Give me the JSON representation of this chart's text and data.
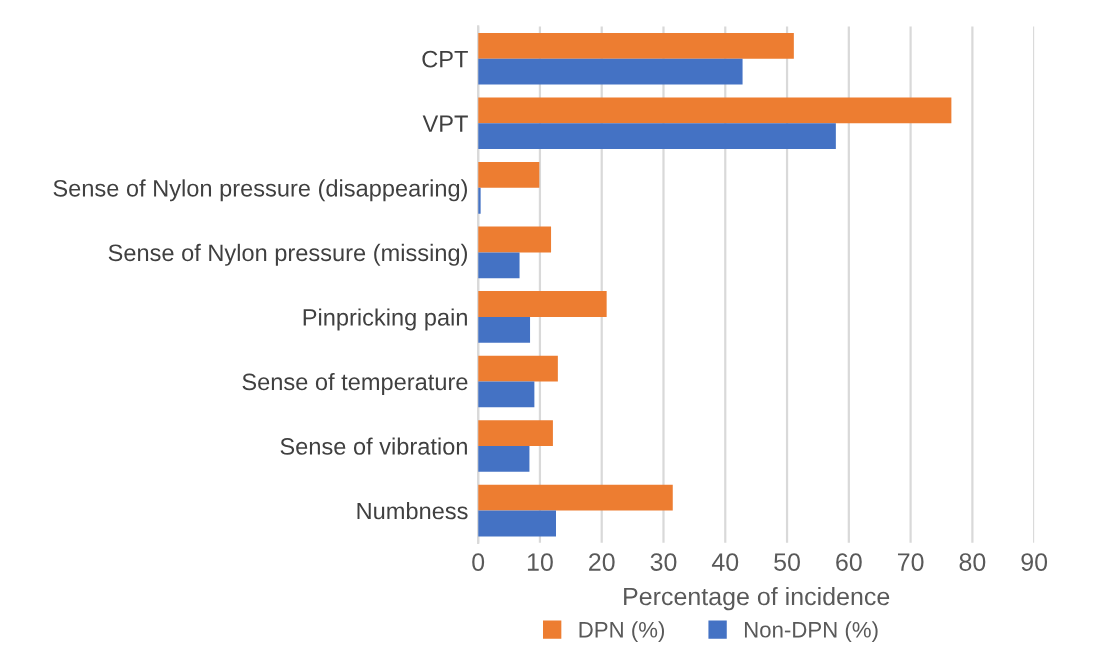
{
  "chart_data": {
    "type": "bar",
    "orientation": "horizontal",
    "xlabel": "Percentage of incidence",
    "categories": [
      "CPT",
      "VPT",
      "Sense of Nylon pressure (disappearing)",
      "Sense of Nylon pressure (missing)",
      "Pinpricking pain",
      "Sense of temperature",
      "Sense of vibration",
      "Numbness"
    ],
    "series": [
      {
        "name": "DPN (%)",
        "color": "#ed7d31",
        "values": [
          51.1,
          76.6,
          9.9,
          11.8,
          20.8,
          12.9,
          12.1,
          31.5
        ]
      },
      {
        "name": "Non-DPN (%)",
        "color": "#4472c4",
        "values": [
          42.8,
          57.9,
          0.4,
          6.7,
          8.4,
          9.1,
          8.3,
          12.6
        ]
      }
    ],
    "xlim": [
      0,
      90
    ],
    "xticks": [
      0,
      10,
      20,
      30,
      40,
      50,
      60,
      70,
      80,
      90
    ],
    "grid": "x",
    "legend": "bottom"
  }
}
